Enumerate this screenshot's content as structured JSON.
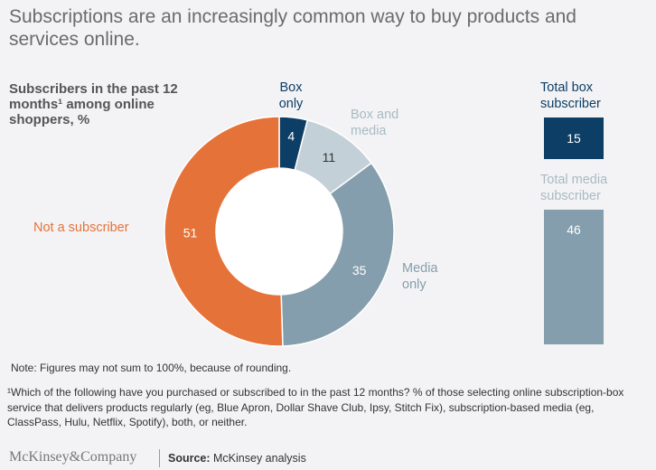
{
  "title": "Subscriptions are an increasingly common way to buy products and services online.",
  "chart_data": [
    {
      "type": "pie",
      "subtitle": "Subscribers in the past 12 months¹ among online shoppers, %",
      "slices": [
        {
          "label": "Box only",
          "value": 4,
          "color": "#0d3e66"
        },
        {
          "label": "Box and media",
          "value": 11,
          "color": "#c3d0d8"
        },
        {
          "label": "Media only",
          "value": 35,
          "color": "#849ead"
        },
        {
          "label": "Not a subscriber",
          "value": 51,
          "color": "#e57339"
        }
      ]
    },
    {
      "type": "bar",
      "categories": [
        "Total box subscriber",
        "Total media subscriber"
      ],
      "values": [
        15,
        46
      ],
      "colors": [
        "#0d3e66",
        "#849ead"
      ]
    }
  ],
  "note": "Note: Figures may not sum to 100%, because of rounding.",
  "footnote": "¹Which of the following have you purchased or subscribed to in the past 12 months? % of those selecting online subscription-box service that delivers products regularly (eg, Blue Apron, Dollar Shave Club, Ipsy, Stitch Fix), subscription-based media (eg, ClassPass, Hulu, Netflix, Spotify), both, or neither.",
  "logo": "McKinsey&Company",
  "source_label": "Source:",
  "source": " McKinsey analysis"
}
